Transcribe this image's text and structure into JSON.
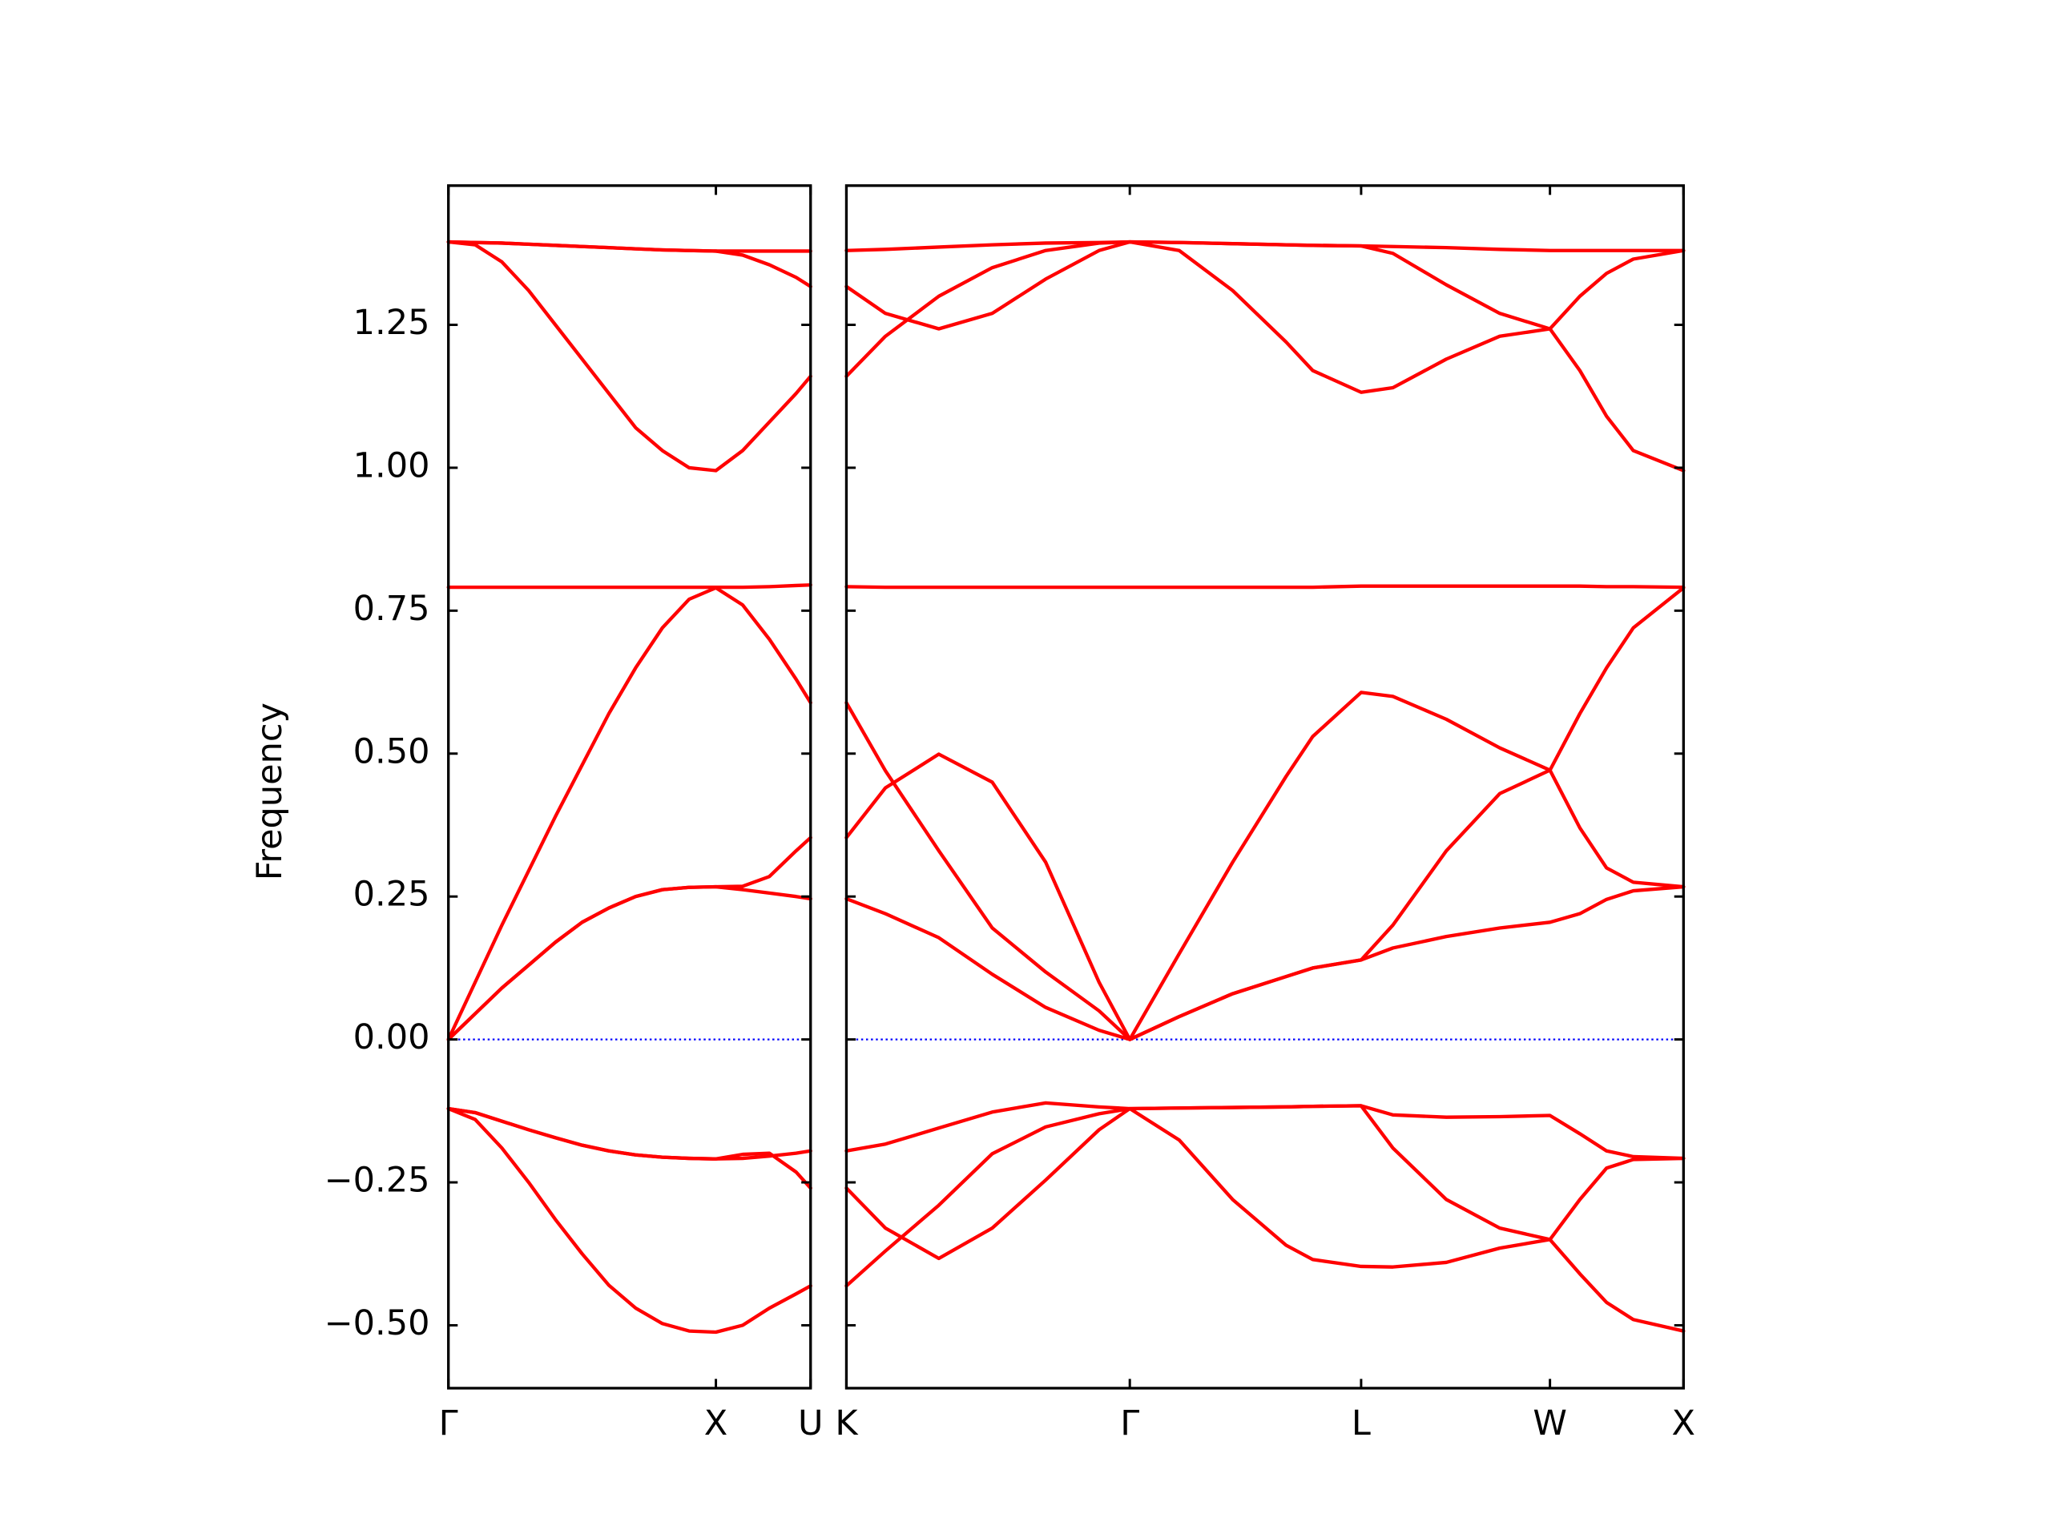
{
  "chart_data": [
    {
      "type": "line",
      "ylabel": "Frequency",
      "x": [
        0,
        0.1,
        0.2,
        0.3,
        0.4,
        0.5,
        0.6,
        0.7,
        0.8,
        0.9,
        1.0,
        1.1,
        1.2,
        1.3,
        1.354
      ],
      "xlim": [
        0,
        1.354
      ],
      "xticks": [
        {
          "value": 0,
          "label": "Γ"
        },
        {
          "value": 1.0,
          "label": "X"
        },
        {
          "value": 1.354,
          "label": "U"
        }
      ],
      "ylim": [
        -0.61,
        1.4935
      ],
      "yticks": [
        {
          "value": -0.5,
          "label": "−0.50"
        },
        {
          "value": -0.25,
          "label": "−0.25"
        },
        {
          "value": 0,
          "label": "0.00"
        },
        0.25,
        {
          "value": 0.5,
          "label": "0.50"
        },
        0.75,
        {
          "value": 1,
          "label": "1.00"
        },
        1.25
      ],
      "reference_line": {
        "y": 0,
        "color": "#0000ff"
      },
      "series": [
        {
          "color": "#ff0000",
          "values": [
            1.395,
            1.394,
            1.393,
            1.391,
            1.389,
            1.387,
            1.385,
            1.383,
            1.381,
            1.38,
            1.379,
            1.379,
            1.379,
            1.379,
            1.379
          ]
        },
        {
          "color": "#ff0000",
          "values": [
            1.395,
            1.394,
            1.393,
            1.391,
            1.389,
            1.387,
            1.385,
            1.383,
            1.381,
            1.38,
            1.379,
            1.372,
            1.355,
            1.333,
            1.317
          ]
        },
        {
          "color": "#ff0000",
          "values": [
            1.395,
            1.39,
            1.36,
            1.31,
            1.25,
            1.19,
            1.13,
            1.07,
            1.03,
            1.0,
            0.995,
            1.03,
            1.08,
            1.13,
            1.16
          ]
        },
        {
          "color": "#ff0000",
          "values": [
            0.791,
            0.791,
            0.791,
            0.791,
            0.791,
            0.791,
            0.791,
            0.791,
            0.791,
            0.791,
            0.791,
            0.791,
            0.792,
            0.794,
            0.795
          ]
        },
        {
          "color": "#ff0000",
          "values": [
            0,
            0.1,
            0.2,
            0.295,
            0.39,
            0.48,
            0.57,
            0.65,
            0.72,
            0.77,
            0.79,
            0.76,
            0.7,
            0.63,
            0.589
          ]
        },
        {
          "color": "#ff0000",
          "values": [
            0,
            0.045,
            0.09,
            0.13,
            0.17,
            0.205,
            0.23,
            0.25,
            0.262,
            0.266,
            0.267,
            0.262,
            0.256,
            0.25,
            0.246
          ]
        },
        {
          "color": "#ff0000",
          "values": [
            0,
            0.045,
            0.09,
            0.13,
            0.17,
            0.205,
            0.23,
            0.25,
            0.262,
            0.266,
            0.267,
            0.268,
            0.285,
            0.33,
            0.353
          ]
        },
        {
          "color": "#ff0000",
          "values": [
            -0.121,
            -0.128,
            -0.143,
            -0.158,
            -0.172,
            -0.185,
            -0.195,
            -0.202,
            -0.206,
            -0.208,
            -0.209,
            -0.208,
            -0.204,
            -0.199,
            -0.195
          ]
        },
        {
          "color": "#ff0000",
          "values": [
            -0.121,
            -0.128,
            -0.143,
            -0.158,
            -0.172,
            -0.185,
            -0.195,
            -0.202,
            -0.206,
            -0.208,
            -0.209,
            -0.201,
            -0.199,
            -0.232,
            -0.26
          ]
        },
        {
          "color": "#ff0000",
          "values": [
            -0.121,
            -0.14,
            -0.19,
            -0.25,
            -0.315,
            -0.375,
            -0.43,
            -0.47,
            -0.497,
            -0.51,
            -0.512,
            -0.5,
            -0.47,
            -0.445,
            -0.431
          ]
        }
      ]
    },
    {
      "type": "line",
      "x": [
        1.354,
        1.5,
        1.7,
        1.9,
        2.1,
        2.3,
        2.415,
        2.6,
        2.8,
        3.0,
        3.1,
        3.281,
        3.4,
        3.6,
        3.8,
        3.988,
        4.1,
        4.2,
        4.3,
        4.488
      ],
      "xlim": [
        1.354,
        4.488
      ],
      "xticks": [
        {
          "value": 1.354,
          "label": "K"
        },
        {
          "value": 2.415,
          "label": "Γ"
        },
        {
          "value": 3.281,
          "label": "L"
        },
        {
          "value": 3.988,
          "label": "W"
        },
        {
          "value": 4.488,
          "label": "X"
        }
      ],
      "ylim": [
        -0.61,
        1.4935
      ],
      "yticks": [
        -0.5,
        -0.25,
        0,
        0.25,
        0.5,
        0.75,
        1,
        1.25
      ],
      "reference_line": {
        "y": 0,
        "color": "#0000ff"
      },
      "series": [
        {
          "color": "#ff0000",
          "values": [
            1.38,
            1.382,
            1.386,
            1.39,
            1.393,
            1.394,
            1.395,
            1.394,
            1.392,
            1.39,
            1.389,
            1.388,
            1.387,
            1.385,
            1.382,
            1.38,
            1.38,
            1.38,
            1.38,
            1.38
          ]
        },
        {
          "color": "#ff0000",
          "values": [
            1.317,
            1.27,
            1.243,
            1.27,
            1.33,
            1.38,
            1.395,
            1.394,
            1.392,
            1.39,
            1.389,
            1.388,
            1.375,
            1.32,
            1.27,
            1.243,
            1.3,
            1.34,
            1.365,
            1.38
          ]
        },
        {
          "color": "#ff0000",
          "values": [
            1.16,
            1.23,
            1.3,
            1.35,
            1.38,
            1.393,
            1.395,
            1.38,
            1.31,
            1.22,
            1.17,
            1.132,
            1.14,
            1.19,
            1.23,
            1.243,
            1.17,
            1.09,
            1.03,
            0.995
          ]
        },
        {
          "color": "#ff0000",
          "values": [
            0.792,
            0.791,
            0.791,
            0.791,
            0.791,
            0.791,
            0.791,
            0.791,
            0.791,
            0.791,
            0.791,
            0.793,
            0.793,
            0.793,
            0.793,
            0.793,
            0.793,
            0.792,
            0.792,
            0.791
          ]
        },
        {
          "color": "#ff0000",
          "values": [
            0.589,
            0.47,
            0.33,
            0.195,
            0.118,
            0.05,
            0,
            0.15,
            0.31,
            0.46,
            0.53,
            0.607,
            0.6,
            0.56,
            0.51,
            0.471,
            0.57,
            0.65,
            0.72,
            0.79
          ]
        },
        {
          "color": "#ff0000",
          "values": [
            0.353,
            0.44,
            0.499,
            0.45,
            0.31,
            0.1,
            0,
            0.04,
            0.08,
            0.11,
            0.125,
            0.139,
            0.2,
            0.33,
            0.43,
            0.471,
            0.37,
            0.3,
            0.275,
            0.267
          ]
        },
        {
          "color": "#ff0000",
          "values": [
            0.246,
            0.22,
            0.178,
            0.114,
            0.056,
            0.016,
            0,
            0.04,
            0.08,
            0.11,
            0.125,
            0.139,
            0.16,
            0.18,
            0.195,
            0.205,
            0.22,
            0.245,
            0.26,
            0.267
          ]
        },
        {
          "color": "#ff0000",
          "values": [
            -0.195,
            -0.183,
            -0.155,
            -0.127,
            -0.111,
            -0.118,
            -0.121,
            -0.12,
            -0.119,
            -0.118,
            -0.117,
            -0.116,
            -0.132,
            -0.136,
            -0.135,
            -0.133,
            -0.165,
            -0.195,
            -0.205,
            -0.208
          ]
        },
        {
          "color": "#ff0000",
          "values": [
            -0.26,
            -0.33,
            -0.383,
            -0.33,
            -0.246,
            -0.158,
            -0.121,
            -0.12,
            -0.119,
            -0.118,
            -0.117,
            -0.116,
            -0.19,
            -0.28,
            -0.33,
            -0.35,
            -0.28,
            -0.225,
            -0.21,
            -0.208
          ]
        },
        {
          "color": "#ff0000",
          "values": [
            -0.431,
            -0.37,
            -0.29,
            -0.2,
            -0.153,
            -0.13,
            -0.121,
            -0.176,
            -0.28,
            -0.36,
            -0.385,
            -0.397,
            -0.398,
            -0.39,
            -0.365,
            -0.35,
            -0.41,
            -0.46,
            -0.49,
            -0.51
          ]
        }
      ]
    }
  ]
}
